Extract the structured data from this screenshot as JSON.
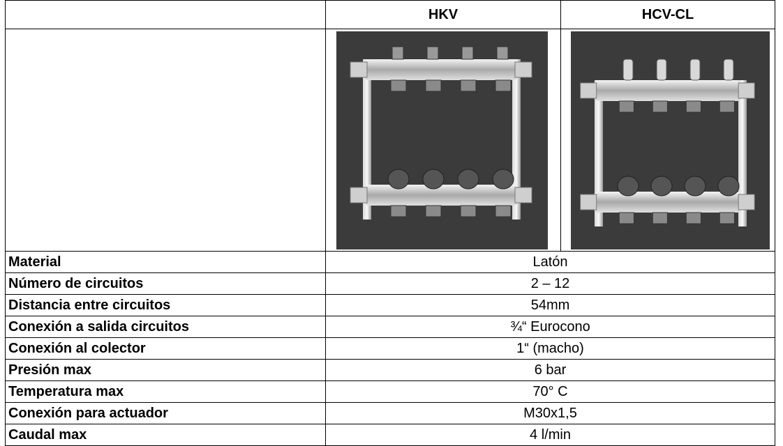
{
  "table": {
    "header": [
      "HKV",
      "HCV-CL"
    ],
    "rows": [
      [
        "Material",
        "Latón"
      ],
      [
        "Número de circuitos",
        "2 – 12"
      ],
      [
        "Distancia entre circuitos",
        "54mm"
      ],
      [
        "Conexión a salida circuitos",
        "¾“ Eurocono"
      ],
      [
        "Conexión al colector",
        "1“ (macho)"
      ],
      [
        "Presión max",
        "6 bar"
      ],
      [
        "Temperatura max",
        "70° C"
      ],
      [
        "Conexión para actuador",
        "M30x1,5"
      ],
      [
        "Caudal max",
        "4 l/min"
      ]
    ]
  }
}
